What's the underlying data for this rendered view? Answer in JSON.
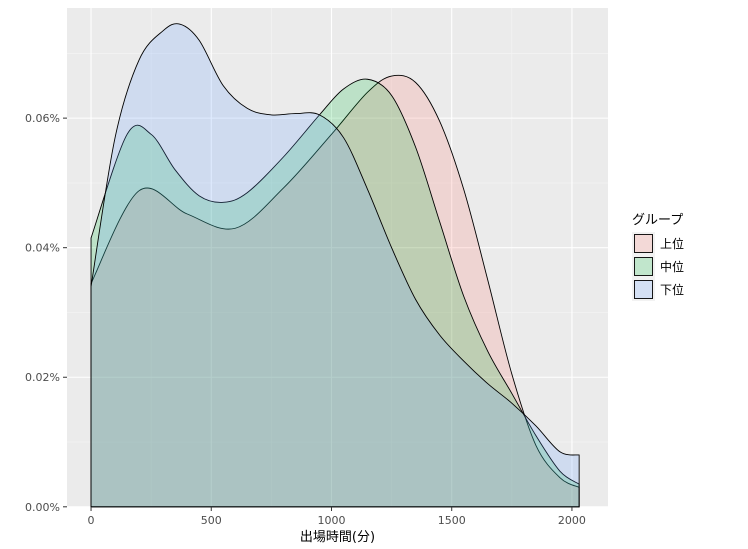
{
  "chart_data": {
    "type": "area",
    "subtype": "density",
    "xlabel": "出場時間(分)",
    "ylabel": "",
    "xlim": [
      -100,
      2150
    ],
    "ylim": [
      -3e-07,
      0.00077
    ],
    "x_ticks": [
      0,
      500,
      1000,
      1500,
      2000
    ],
    "x_tick_labels": [
      "0",
      "500",
      "1000",
      "1500",
      "2000"
    ],
    "y_ticks": [
      0,
      0.0002,
      0.0004,
      0.0006
    ],
    "y_tick_labels": [
      "0.00%",
      "0.02%",
      "0.04%",
      "0.06%"
    ],
    "grid": true,
    "legend_position": "right",
    "legend_title": "グループ",
    "series": [
      {
        "name": "上位",
        "fill": "#F8766D",
        "x": [
          0,
          200,
          400,
          600,
          800,
          1000,
          1150,
          1250,
          1350,
          1450,
          1550,
          1650,
          1750,
          1850,
          1950,
          2030
        ],
        "y": [
          0.000345,
          0.000488,
          0.000452,
          0.00043,
          0.000492,
          0.000575,
          0.00064,
          0.000665,
          0.000655,
          0.000595,
          0.00049,
          0.00035,
          0.000205,
          9.5e-05,
          4.5e-05,
          3e-05
        ]
      },
      {
        "name": "中位",
        "fill": "#00BA38",
        "x": [
          0,
          150,
          250,
          350,
          450,
          550,
          650,
          800,
          950,
          1050,
          1150,
          1250,
          1350,
          1450,
          1550,
          1650,
          1750,
          1850,
          1950,
          2030
        ],
        "y": [
          0.000415,
          0.000575,
          0.000575,
          0.00052,
          0.00048,
          0.00047,
          0.000485,
          0.00054,
          0.000605,
          0.000645,
          0.00066,
          0.000635,
          0.000555,
          0.00044,
          0.000325,
          0.00024,
          0.000175,
          0.00011,
          5.5e-05,
          3.5e-05
        ]
      },
      {
        "name": "下位",
        "fill": "#619CFF",
        "x": [
          0,
          100,
          200,
          300,
          370,
          450,
          550,
          650,
          750,
          850,
          950,
          1050,
          1150,
          1250,
          1350,
          1450,
          1550,
          1650,
          1750,
          1850,
          1950,
          2030
        ],
        "y": [
          0.00034,
          0.00057,
          0.00069,
          0.000735,
          0.000745,
          0.00072,
          0.00065,
          0.000615,
          0.000605,
          0.000607,
          0.000605,
          0.00057,
          0.00049,
          0.0004,
          0.00032,
          0.000265,
          0.000225,
          0.00019,
          0.00016,
          0.000125,
          8.5e-05,
          8e-05
        ]
      }
    ]
  }
}
